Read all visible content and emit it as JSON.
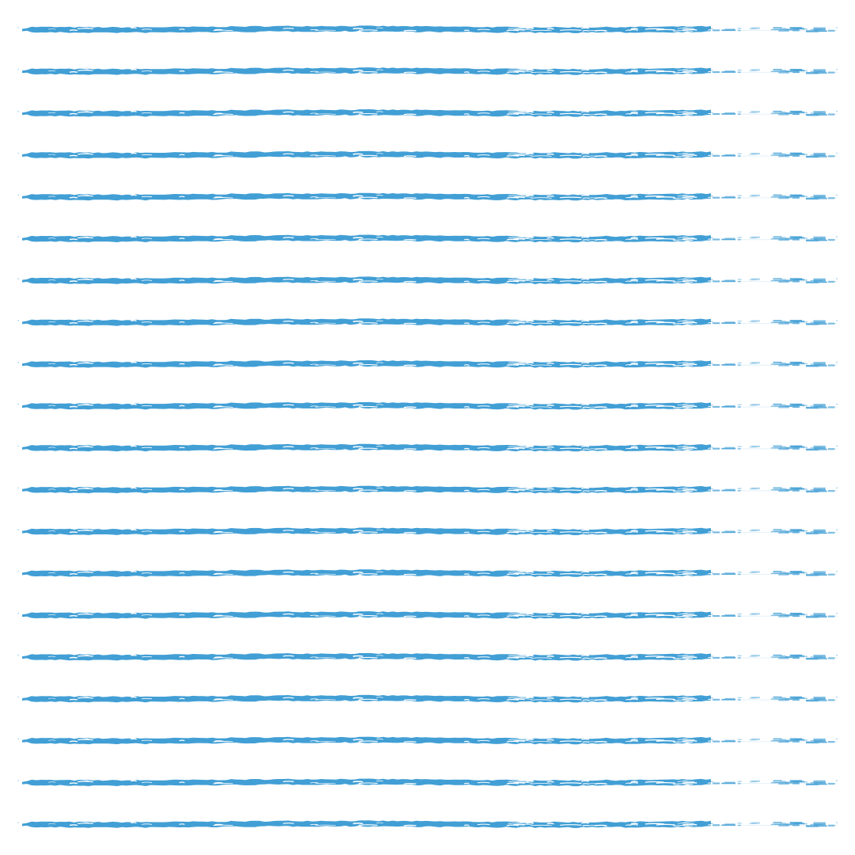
{
  "pattern": {
    "kind": "horizontal brush strokes",
    "stroke_color": "#429fd5",
    "background_color": "#ffffff",
    "rows": 20
  }
}
